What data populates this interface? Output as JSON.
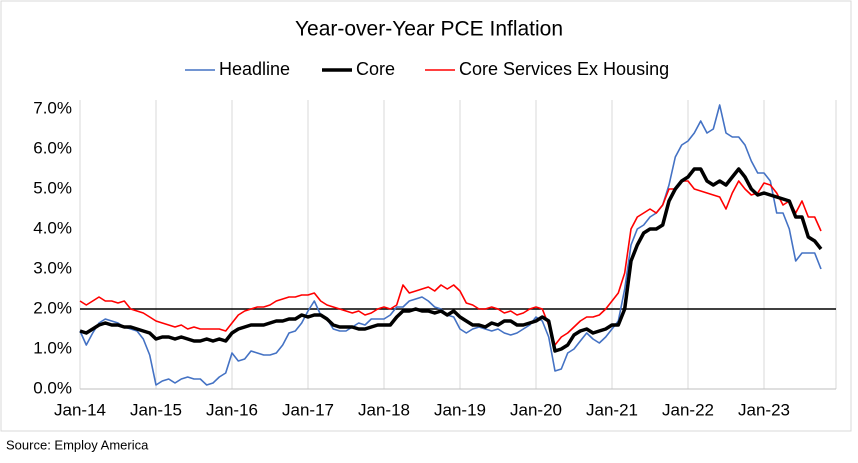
{
  "chart_data": {
    "type": "line",
    "title": "Year-over-Year PCE Inflation",
    "source": "Source: Employ America",
    "categories": [
      "Jan-14",
      null,
      null,
      null,
      null,
      null,
      null,
      null,
      null,
      null,
      null,
      null,
      "Jan-15",
      null,
      null,
      null,
      null,
      null,
      null,
      null,
      null,
      null,
      null,
      null,
      "Jan-16",
      null,
      null,
      null,
      null,
      null,
      null,
      null,
      null,
      null,
      null,
      null,
      "Jan-17",
      null,
      null,
      null,
      null,
      null,
      null,
      null,
      null,
      null,
      null,
      null,
      "Jan-18",
      null,
      null,
      null,
      null,
      null,
      null,
      null,
      null,
      null,
      null,
      null,
      "Jan-19",
      null,
      null,
      null,
      null,
      null,
      null,
      null,
      null,
      null,
      null,
      null,
      "Jan-20",
      null,
      null,
      null,
      null,
      null,
      null,
      null,
      null,
      null,
      null,
      null,
      "Jan-21",
      null,
      null,
      null,
      null,
      null,
      null,
      null,
      null,
      null,
      null,
      null,
      "Jan-22",
      null,
      null,
      null,
      null,
      null,
      null,
      null,
      null,
      null,
      null,
      null,
      "Jan-23",
      null,
      null,
      null,
      null,
      null,
      null,
      null,
      null,
      null
    ],
    "series": [
      {
        "name": "Headline",
        "color": "#4472c4",
        "values": [
          1.45,
          1.1,
          1.4,
          1.65,
          1.75,
          1.7,
          1.65,
          1.55,
          1.5,
          1.45,
          1.25,
          0.85,
          0.1,
          0.2,
          0.25,
          0.15,
          0.25,
          0.3,
          0.25,
          0.25,
          0.1,
          0.15,
          0.3,
          0.4,
          0.9,
          0.7,
          0.75,
          0.95,
          0.9,
          0.85,
          0.85,
          0.9,
          1.1,
          1.4,
          1.45,
          1.65,
          1.95,
          2.2,
          1.85,
          1.75,
          1.5,
          1.45,
          1.45,
          1.55,
          1.65,
          1.6,
          1.75,
          1.75,
          1.75,
          1.85,
          2.05,
          2.05,
          2.2,
          2.25,
          2.3,
          2.2,
          2.05,
          2.0,
          1.85,
          1.8,
          1.5,
          1.4,
          1.5,
          1.55,
          1.5,
          1.45,
          1.5,
          1.4,
          1.35,
          1.4,
          1.5,
          1.6,
          1.8,
          1.7,
          1.3,
          0.45,
          0.5,
          0.9,
          1.0,
          1.2,
          1.4,
          1.25,
          1.15,
          1.3,
          1.5,
          1.7,
          2.5,
          3.6,
          4.0,
          4.1,
          4.3,
          4.4,
          4.6,
          5.1,
          5.8,
          6.1,
          6.2,
          6.4,
          6.7,
          6.4,
          6.5,
          7.1,
          6.4,
          6.3,
          6.3,
          6.1,
          5.7,
          5.4,
          5.4,
          5.2,
          4.4,
          4.4,
          4.0,
          3.2,
          3.4,
          3.4,
          3.4,
          3.0
        ]
      },
      {
        "name": "Core",
        "color": "#000000",
        "values": [
          1.45,
          1.4,
          1.5,
          1.6,
          1.65,
          1.6,
          1.6,
          1.55,
          1.55,
          1.5,
          1.45,
          1.4,
          1.25,
          1.3,
          1.3,
          1.25,
          1.3,
          1.25,
          1.2,
          1.2,
          1.25,
          1.2,
          1.25,
          1.2,
          1.4,
          1.5,
          1.55,
          1.6,
          1.6,
          1.6,
          1.65,
          1.7,
          1.7,
          1.75,
          1.75,
          1.85,
          1.8,
          1.85,
          1.85,
          1.75,
          1.6,
          1.55,
          1.55,
          1.55,
          1.5,
          1.5,
          1.55,
          1.6,
          1.6,
          1.6,
          1.8,
          1.95,
          1.95,
          2.0,
          1.95,
          1.95,
          1.9,
          1.95,
          1.85,
          1.95,
          1.8,
          1.7,
          1.6,
          1.6,
          1.55,
          1.65,
          1.6,
          1.7,
          1.7,
          1.6,
          1.6,
          1.65,
          1.7,
          1.8,
          1.7,
          0.95,
          1.0,
          1.1,
          1.35,
          1.45,
          1.5,
          1.4,
          1.45,
          1.5,
          1.6,
          1.6,
          2.0,
          3.2,
          3.6,
          3.9,
          4.0,
          4.0,
          4.1,
          4.7,
          5.0,
          5.2,
          5.3,
          5.5,
          5.5,
          5.2,
          5.1,
          5.2,
          5.1,
          5.3,
          5.5,
          5.3,
          5.0,
          4.85,
          4.9,
          4.85,
          4.8,
          4.75,
          4.7,
          4.3,
          4.3,
          3.8,
          3.7,
          3.5
        ]
      },
      {
        "name": "Core Services Ex Housing",
        "color": "#ff0000",
        "values": [
          2.2,
          2.1,
          2.2,
          2.3,
          2.2,
          2.2,
          2.15,
          2.2,
          2.0,
          1.95,
          1.9,
          1.8,
          1.7,
          1.65,
          1.6,
          1.55,
          1.6,
          1.5,
          1.55,
          1.5,
          1.5,
          1.5,
          1.5,
          1.45,
          1.65,
          1.85,
          1.95,
          2.0,
          2.05,
          2.05,
          2.1,
          2.2,
          2.25,
          2.3,
          2.3,
          2.35,
          2.35,
          2.4,
          2.2,
          2.1,
          2.05,
          2.0,
          1.95,
          1.9,
          1.95,
          1.85,
          1.9,
          2.0,
          2.05,
          2.0,
          2.1,
          2.6,
          2.4,
          2.45,
          2.5,
          2.55,
          2.45,
          2.6,
          2.5,
          2.6,
          2.45,
          2.15,
          2.1,
          2.0,
          2.0,
          2.05,
          2.0,
          1.9,
          1.95,
          1.85,
          1.9,
          2.0,
          2.05,
          2.0,
          1.6,
          1.1,
          1.3,
          1.4,
          1.55,
          1.7,
          1.8,
          1.8,
          1.85,
          2.0,
          2.2,
          2.4,
          2.9,
          4.0,
          4.3,
          4.4,
          4.5,
          4.4,
          4.6,
          5.0,
          5.0,
          5.2,
          5.2,
          5.0,
          4.95,
          4.9,
          4.85,
          4.8,
          4.5,
          4.9,
          5.2,
          5.0,
          4.85,
          4.9,
          5.15,
          5.1,
          4.9,
          4.6,
          4.7,
          4.4,
          4.7,
          4.3,
          4.3,
          3.95
        ]
      }
    ],
    "ylim": [
      0,
      7
    ],
    "yticks": [
      {
        "value": 0,
        "label": "0.0%"
      },
      {
        "value": 1,
        "label": "1.0%"
      },
      {
        "value": 2,
        "label": "2.0%"
      },
      {
        "value": 3,
        "label": "3.0%"
      },
      {
        "value": 4,
        "label": "4.0%"
      },
      {
        "value": 5,
        "label": "5.0%"
      },
      {
        "value": 6,
        "label": "6.0%"
      },
      {
        "value": 7,
        "label": "7.0%"
      }
    ],
    "reference_line": 2,
    "grid": "x",
    "legend": "top"
  }
}
